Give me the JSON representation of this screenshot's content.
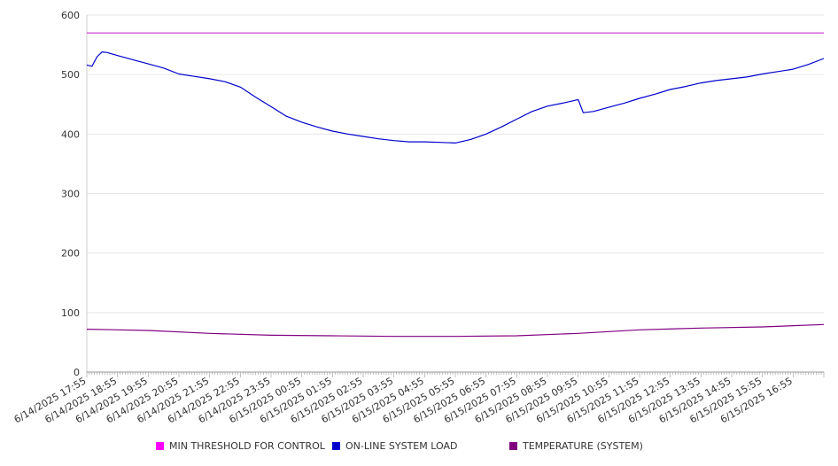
{
  "chart_data": {
    "type": "line",
    "title": "",
    "xlabel": "",
    "ylabel": "",
    "ylim": [
      0,
      600
    ],
    "yticks": [
      0,
      100,
      200,
      300,
      400,
      500,
      600
    ],
    "grid": true,
    "legend_position": "bottom",
    "x_tick_labels": [
      "6/14/2025 17:55",
      "6/14/2025 18:55",
      "6/14/2025 19:55",
      "6/14/2025 20:55",
      "6/14/2025 21:55",
      "6/14/2025 22:55",
      "6/14/2025 23:55",
      "6/15/2025 00:55",
      "6/15/2025 01:55",
      "6/15/2025 02:55",
      "6/15/2025 03:55",
      "6/15/2025 04:55",
      "6/15/2025 05:55",
      "6/15/2025 06:55",
      "6/15/2025 07:55",
      "6/15/2025 08:55",
      "6/15/2025 09:55",
      "6/15/2025 10:55",
      "6/15/2025 11:55",
      "6/15/2025 12:55",
      "6/15/2025 13:55",
      "6/15/2025 14:55",
      "6/15/2025 15:55",
      "6/15/2025 16:55"
    ],
    "x_range": [
      "6/14/2025 17:55",
      "6/15/2025 17:55"
    ],
    "series": [
      {
        "name": "MIN THRESHOLD FOR CONTROL",
        "color": "#cc33cc",
        "x": [
          "6/14/2025 17:55",
          "6/15/2025 17:55"
        ],
        "values": [
          570,
          570
        ]
      },
      {
        "name": "ON-LINE SYSTEM LOAD",
        "color": "#0000cc",
        "x": [
          "6/14/2025 17:55",
          "6/14/2025 18:05",
          "6/14/2025 18:15",
          "6/14/2025 18:25",
          "6/14/2025 18:35",
          "6/14/2025 18:55",
          "6/14/2025 19:25",
          "6/14/2025 19:55",
          "6/14/2025 20:25",
          "6/14/2025 20:55",
          "6/14/2025 21:25",
          "6/14/2025 21:55",
          "6/14/2025 22:25",
          "6/14/2025 22:55",
          "6/14/2025 23:25",
          "6/14/2025 23:55",
          "6/15/2025 00:25",
          "6/15/2025 00:55",
          "6/15/2025 01:25",
          "6/15/2025 01:55",
          "6/15/2025 02:25",
          "6/15/2025 02:55",
          "6/15/2025 03:25",
          "6/15/2025 03:55",
          "6/15/2025 04:25",
          "6/15/2025 04:55",
          "6/15/2025 05:25",
          "6/15/2025 05:55",
          "6/15/2025 06:25",
          "6/15/2025 06:55",
          "6/15/2025 07:25",
          "6/15/2025 07:55",
          "6/15/2025 08:25",
          "6/15/2025 08:55",
          "6/15/2025 09:25",
          "6/15/2025 09:55",
          "6/15/2025 10:05",
          "6/15/2025 10:25",
          "6/15/2025 10:55",
          "6/15/2025 11:25",
          "6/15/2025 11:55",
          "6/15/2025 12:25",
          "6/15/2025 12:55",
          "6/15/2025 13:25",
          "6/15/2025 13:55",
          "6/15/2025 14:25",
          "6/15/2025 14:55",
          "6/15/2025 15:25",
          "6/15/2025 15:55",
          "6/15/2025 16:25",
          "6/15/2025 16:55",
          "6/15/2025 17:25",
          "6/15/2025 17:55"
        ],
        "values": [
          516,
          514,
          530,
          538,
          537,
          532,
          525,
          518,
          511,
          501,
          497,
          493,
          488,
          479,
          462,
          446,
          430,
          420,
          412,
          405,
          400,
          396,
          392,
          389,
          387,
          387,
          386,
          385,
          391,
          400,
          412,
          425,
          438,
          447,
          452,
          458,
          436,
          438,
          445,
          452,
          460,
          467,
          475,
          480,
          486,
          490,
          493,
          496,
          501,
          505,
          509,
          517,
          527
        ]
      },
      {
        "name": "TEMPERATURE (SYSTEM)",
        "color": "#800080",
        "x": [
          "6/14/2025 17:55",
          "6/14/2025 19:55",
          "6/14/2025 21:55",
          "6/14/2025 23:55",
          "6/15/2025 01:55",
          "6/15/2025 03:55",
          "6/15/2025 05:55",
          "6/15/2025 07:55",
          "6/15/2025 09:55",
          "6/15/2025 11:55",
          "6/15/2025 13:55",
          "6/15/2025 15:55",
          "6/15/2025 17:55"
        ],
        "values": [
          72,
          70,
          65,
          62,
          61,
          60,
          60,
          61,
          65,
          71,
          74,
          76,
          80
        ]
      }
    ]
  }
}
